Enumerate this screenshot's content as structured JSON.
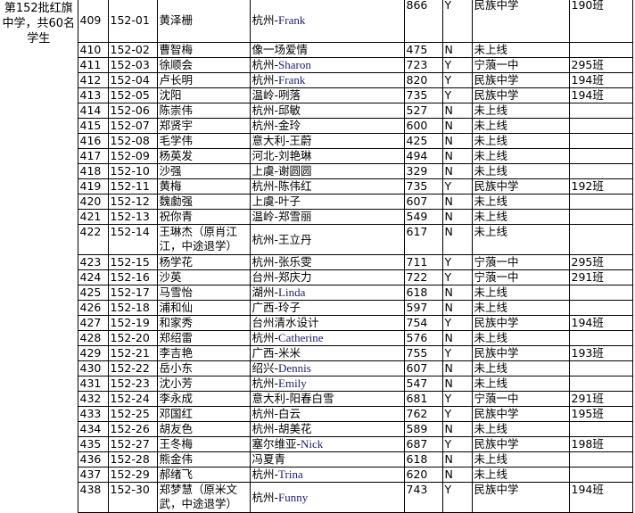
{
  "group_label": "第152批红旗中学，共60名学生",
  "rows": [
    {
      "num": "409",
      "id": "152-01",
      "name": "黄泽栅",
      "teacher": "杭州-Frank",
      "score": "866",
      "online": "Y",
      "school": "民族中学",
      "class": "190班"
    },
    {
      "num": "410",
      "id": "152-02",
      "name": "曹智梅",
      "teacher": "像一场爱情",
      "score": "475",
      "online": "N",
      "school": "未上线",
      "class": ""
    },
    {
      "num": "411",
      "id": "152-03",
      "name": "徐顺会",
      "teacher": "杭州-Sharon",
      "score": "723",
      "online": "Y",
      "school": "宁蒗一中",
      "class": "295班"
    },
    {
      "num": "412",
      "id": "152-04",
      "name": "卢长明",
      "teacher": "杭州-Frank",
      "score": "820",
      "online": "Y",
      "school": "民族中学",
      "class": "194班"
    },
    {
      "num": "413",
      "id": "152-05",
      "name": "沈阳",
      "teacher": "温岭-咧落",
      "score": "735",
      "online": "Y",
      "school": "民族中学",
      "class": "194班"
    },
    {
      "num": "414",
      "id": "152-06",
      "name": "陈崇伟",
      "teacher": "杭州-邱敏",
      "score": "527",
      "online": "N",
      "school": "未上线",
      "class": ""
    },
    {
      "num": "415",
      "id": "152-07",
      "name": "郑贤宇",
      "teacher": "杭州-金玲",
      "score": "600",
      "online": "N",
      "school": "未上线",
      "class": ""
    },
    {
      "num": "416",
      "id": "152-08",
      "name": "毛学伟",
      "teacher": "意大利-王蔚",
      "score": "425",
      "online": "N",
      "school": "未上线",
      "class": ""
    },
    {
      "num": "417",
      "id": "152-09",
      "name": "杨英发",
      "teacher": "河北-刘艳琳",
      "score": "494",
      "online": "N",
      "school": "未上线",
      "class": ""
    },
    {
      "num": "418",
      "id": "152-10",
      "name": "沙强",
      "teacher": "上虞-谢圆圆",
      "score": "329",
      "online": "N",
      "school": "未上线",
      "class": ""
    },
    {
      "num": "419",
      "id": "152-11",
      "name": "黄梅",
      "teacher": "杭州-陈伟红",
      "score": "735",
      "online": "Y",
      "school": "民族中学",
      "class": "192班"
    },
    {
      "num": "420",
      "id": "152-12",
      "name": "魏勮强",
      "teacher": "上虞-叶子",
      "score": "607",
      "online": "N",
      "school": "未上线",
      "class": ""
    },
    {
      "num": "421",
      "id": "152-13",
      "name": "祝你青",
      "teacher": "温岭-郑雪丽",
      "score": "549",
      "online": "N",
      "school": "未上线",
      "class": ""
    },
    {
      "num": "422",
      "id": "152-14",
      "name": "王琳杰（原肖江江，中途退学）",
      "teacher": "杭州-王立丹",
      "score": "617",
      "online": "N",
      "school": "未上线",
      "class": ""
    },
    {
      "num": "423",
      "id": "152-15",
      "name": "杨学花",
      "teacher": "杭州-张乐雯",
      "score": "711",
      "online": "Y",
      "school": "宁蒗一中",
      "class": "295班"
    },
    {
      "num": "424",
      "id": "152-16",
      "name": "沙英",
      "teacher": "台州-郑庆力",
      "score": "722",
      "online": "Y",
      "school": "宁蒗一中",
      "class": "291班"
    },
    {
      "num": "425",
      "id": "152-17",
      "name": "马雪怡",
      "teacher": "湖州-Linda",
      "score": "618",
      "online": "N",
      "school": "未上线",
      "class": ""
    },
    {
      "num": "426",
      "id": "152-18",
      "name": "浦和仙",
      "teacher": "广西-玲子",
      "score": "597",
      "online": "N",
      "school": "未上线",
      "class": ""
    },
    {
      "num": "427",
      "id": "152-19",
      "name": "和家秀",
      "teacher": "台州清水设计",
      "score": "754",
      "online": "Y",
      "school": "民族中学",
      "class": "194班"
    },
    {
      "num": "428",
      "id": "152-20",
      "name": "郑绍雷",
      "teacher": "杭州-Catherine",
      "score": "576",
      "online": "N",
      "school": "未上线",
      "class": ""
    },
    {
      "num": "429",
      "id": "152-21",
      "name": "李吉艳",
      "teacher": "广西-米米",
      "score": "755",
      "online": "Y",
      "school": "民族中学",
      "class": "193班"
    },
    {
      "num": "430",
      "id": "152-22",
      "name": "岳小东",
      "teacher": "绍兴-Dennis",
      "score": "607",
      "online": "N",
      "school": "未上线",
      "class": ""
    },
    {
      "num": "431",
      "id": "152-23",
      "name": "沈小芳",
      "teacher": "杭州-Emily",
      "score": "547",
      "online": "N",
      "school": "未上线",
      "class": ""
    },
    {
      "num": "432",
      "id": "152-24",
      "name": "李永成",
      "teacher": "意大利-阳春白雪",
      "score": "681",
      "online": "Y",
      "school": "宁蒗一中",
      "class": "291班"
    },
    {
      "num": "433",
      "id": "152-25",
      "name": "邓国红",
      "teacher": "杭州-白云",
      "score": "762",
      "online": "Y",
      "school": "民族中学",
      "class": "195班"
    },
    {
      "num": "434",
      "id": "152-26",
      "name": "胡友色",
      "teacher": "杭州-胡美花",
      "score": "589",
      "online": "N",
      "school": "未上线",
      "class": ""
    },
    {
      "num": "435",
      "id": "152-27",
      "name": "王冬梅",
      "teacher": "塞尔维亚-Nick",
      "score": "687",
      "online": "Y",
      "school": "民族中学",
      "class": "198班"
    },
    {
      "num": "436",
      "id": "152-28",
      "name": "熊金伟",
      "teacher": "冯夏青",
      "score": "618",
      "online": "N",
      "school": "未上线",
      "class": ""
    },
    {
      "num": "437",
      "id": "152-29",
      "name": "郝绪飞",
      "teacher": "杭州-Trina",
      "score": "620",
      "online": "N",
      "school": "未上线",
      "class": ""
    },
    {
      "num": "438",
      "id": "152-30",
      "name": "郑梦慧（原米文武，中途退学）",
      "teacher": "杭州-Funny",
      "score": "743",
      "online": "Y",
      "school": "民族中学",
      "class": "194班"
    }
  ]
}
